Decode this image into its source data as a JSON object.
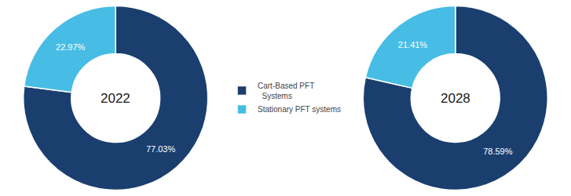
{
  "chart_data": [
    {
      "type": "pie",
      "annotations": [
        "2022"
      ],
      "categories": [
        "Cart-Based PFT\n  Systems",
        "Stationary PFT systems"
      ],
      "values": [
        77.03,
        22.97
      ],
      "value_labels": [
        "77.03%",
        "22.97%"
      ],
      "colors": [
        "#1a3f6f",
        "#47bde6"
      ],
      "data_labels": true,
      "legend": "center"
    },
    {
      "type": "pie",
      "annotations": [
        "2028"
      ],
      "categories": [
        "Cart-Based PFT\n  Systems",
        "Stationary PFT systems"
      ],
      "values": [
        78.59,
        21.41
      ],
      "value_labels": [
        "78.59%",
        "21.41%"
      ],
      "colors": [
        "#1a3f6f",
        "#47bde6"
      ],
      "data_labels": true,
      "legend": "center"
    }
  ]
}
